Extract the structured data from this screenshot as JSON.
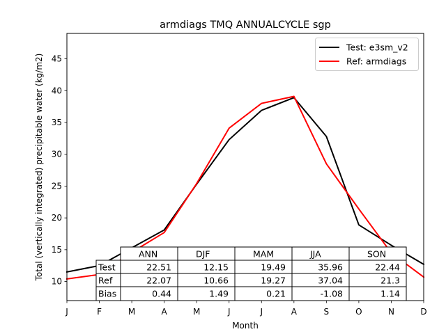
{
  "chart_data": {
    "type": "line",
    "title": "armdiags TMQ ANNUALCYCLE sgp",
    "xlabel": "Month",
    "ylabel": "Total (vertically integrated) precipitable water (kg/m2)",
    "x_ticks": [
      "J",
      "F",
      "M",
      "A",
      "M",
      "J",
      "J",
      "A",
      "S",
      "O",
      "N",
      "D"
    ],
    "ylim": [
      7,
      49
    ],
    "y_ticks": [
      10,
      15,
      20,
      25,
      30,
      35,
      40,
      45
    ],
    "grid": false,
    "legend_position": "upper right",
    "series": [
      {
        "name": "Test: e3sm_v2",
        "color": "#000000",
        "values": [
          11.5,
          12.5,
          15.3,
          18.1,
          25.3,
          32.3,
          36.9,
          38.9,
          32.8,
          18.9,
          15.7,
          12.7
        ]
      },
      {
        "name": "Ref: armdiags",
        "color": "#ff0000",
        "values": [
          10.4,
          11.1,
          14.6,
          17.7,
          25.4,
          34.1,
          38.0,
          39.1,
          28.5,
          21.4,
          14.5,
          10.7
        ]
      }
    ],
    "table": {
      "columns": [
        "ANN",
        "DJF",
        "MAM",
        "JJA",
        "SON"
      ],
      "rows": [
        {
          "label": "Test",
          "values": [
            "22.51",
            "12.15",
            "19.49",
            "35.96",
            "22.44"
          ]
        },
        {
          "label": "Ref",
          "values": [
            "22.07",
            "10.66",
            "19.27",
            "37.04",
            "21.3"
          ]
        },
        {
          "label": "Bias",
          "values": [
            "0.44",
            "1.49",
            "0.21",
            "-1.08",
            "1.14"
          ]
        }
      ]
    }
  }
}
